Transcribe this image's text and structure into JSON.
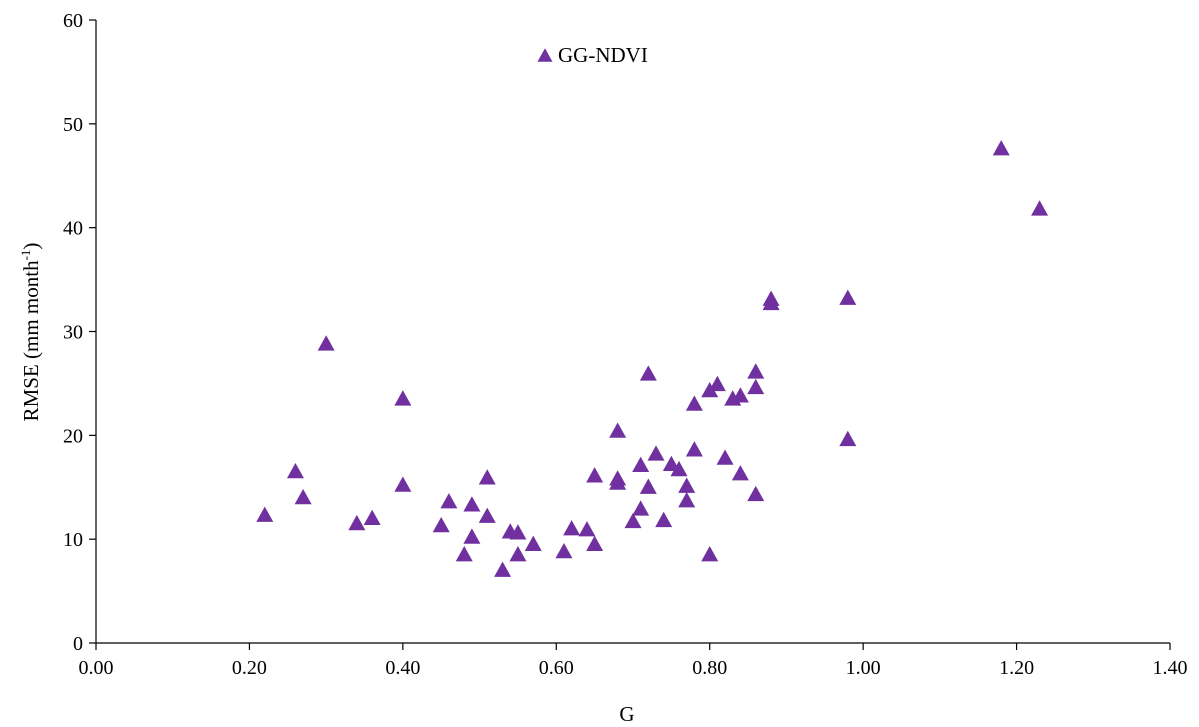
{
  "chart_data": {
    "type": "scatter",
    "xlabel": "G",
    "ylabel": "RMSE (mm month",
    "ylabel_superscript": "-1",
    "ylabel_suffix": ")",
    "xlim": [
      0,
      1.4
    ],
    "ylim": [
      0,
      60
    ],
    "x_ticks": [
      0,
      0.2,
      0.4,
      0.6,
      0.8,
      1.0,
      1.2,
      1.4
    ],
    "x_tick_labels": [
      "0.00",
      "0.20",
      "0.40",
      "0.60",
      "0.80",
      "1.00",
      "1.20",
      "1.40"
    ],
    "y_ticks": [
      0,
      10,
      20,
      30,
      40,
      50,
      60
    ],
    "y_tick_labels": [
      "0",
      "10",
      "20",
      "30",
      "40",
      "50",
      "60"
    ],
    "grid": false,
    "legend_position": "top-center",
    "series": [
      {
        "name": "GG-NDVI",
        "marker": "triangle",
        "color": "#7030a0",
        "points": [
          [
            0.22,
            12.4
          ],
          [
            0.26,
            16.6
          ],
          [
            0.27,
            14.1
          ],
          [
            0.3,
            28.9
          ],
          [
            0.34,
            11.6
          ],
          [
            0.36,
            12.1
          ],
          [
            0.4,
            23.6
          ],
          [
            0.4,
            15.3
          ],
          [
            0.45,
            11.4
          ],
          [
            0.46,
            13.7
          ],
          [
            0.48,
            8.6
          ],
          [
            0.49,
            13.4
          ],
          [
            0.49,
            10.3
          ],
          [
            0.51,
            16.0
          ],
          [
            0.51,
            12.3
          ],
          [
            0.53,
            7.1
          ],
          [
            0.54,
            10.8
          ],
          [
            0.55,
            8.6
          ],
          [
            0.55,
            10.7
          ],
          [
            0.57,
            9.6
          ],
          [
            0.61,
            8.9
          ],
          [
            0.62,
            11.1
          ],
          [
            0.64,
            11.0
          ],
          [
            0.65,
            16.2
          ],
          [
            0.65,
            9.6
          ],
          [
            0.68,
            20.5
          ],
          [
            0.68,
            15.5
          ],
          [
            0.68,
            15.9
          ],
          [
            0.7,
            11.8
          ],
          [
            0.71,
            13.0
          ],
          [
            0.71,
            17.2
          ],
          [
            0.72,
            26.0
          ],
          [
            0.72,
            15.1
          ],
          [
            0.73,
            18.3
          ],
          [
            0.74,
            11.9
          ],
          [
            0.75,
            17.3
          ],
          [
            0.76,
            16.8
          ],
          [
            0.77,
            15.2
          ],
          [
            0.77,
            13.8
          ],
          [
            0.78,
            18.7
          ],
          [
            0.78,
            23.1
          ],
          [
            0.8,
            24.4
          ],
          [
            0.8,
            8.6
          ],
          [
            0.81,
            25.0
          ],
          [
            0.82,
            17.9
          ],
          [
            0.83,
            23.6
          ],
          [
            0.84,
            23.9
          ],
          [
            0.84,
            16.4
          ],
          [
            0.86,
            26.2
          ],
          [
            0.86,
            24.7
          ],
          [
            0.86,
            14.4
          ],
          [
            0.88,
            33.2
          ],
          [
            0.88,
            32.8
          ],
          [
            0.98,
            33.3
          ],
          [
            0.98,
            19.7
          ],
          [
            1.18,
            47.7
          ],
          [
            1.23,
            41.9
          ]
        ]
      }
    ]
  }
}
